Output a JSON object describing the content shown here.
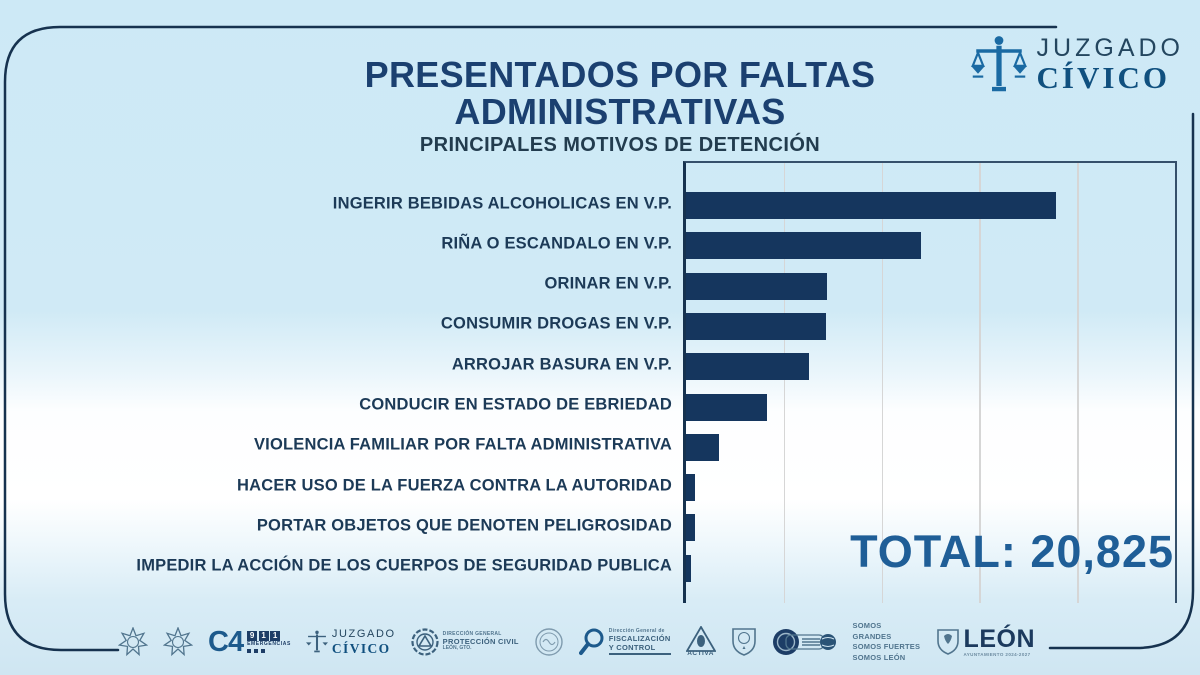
{
  "colors": {
    "background": "#cfe9f6",
    "bar": "#15365e",
    "title": "#1b4070",
    "subtitle": "#223c4e",
    "total_text": "#1f5e97",
    "frame": "#16324f",
    "footer_steel": "#51758e"
  },
  "brand": {
    "line1": "JUZGADO",
    "line2": "CÍVICO"
  },
  "header": {
    "title_line1": "PRESENTADOS POR FALTAS",
    "title_line2": "ADMINISTRATIVAS",
    "subtitle": "PRINCIPALES MOTIVOS DE DETENCIÓN"
  },
  "chart_data": {
    "type": "bar",
    "orientation": "horizontal",
    "title": "PRESENTADOS POR FALTAS ADMINISTRATIVAS",
    "subtitle": "PRINCIPALES MOTIVOS DE DETENCIÓN",
    "categories": [
      "INGERIR BEBIDAS ALCOHOLICAS EN V.P.",
      "RIÑA O ESCANDALO EN V.P.",
      "ORINAR EN V.P.",
      "CONSUMIR DROGAS EN V.P.",
      "ARROJAR BASURA EN V.P.",
      "CONDUCIR EN ESTADO DE EBRIEDAD",
      "VIOLENCIA FAMILIAR POR FALTA ADMINISTRATIVA",
      "HACER USO DE LA FUERZA CONTRA LA AUTORIDAD",
      "PORTAR OBJETOS QUE DENOTEN PELIGROSIDAD",
      "IMPEDIR LA ACCIÓN DE LOS CUERPOS DE SEGURIDAD PUBLICA"
    ],
    "values": [
      6723,
      4270,
      2562,
      2544,
      2235,
      1472,
      600,
      164,
      164,
      91
    ],
    "values_are_estimates": true,
    "value_labels_shown": false,
    "total": 20825,
    "length_frac": [
      0.757,
      0.481,
      0.288,
      0.286,
      0.252,
      0.166,
      0.067,
      0.018,
      0.018,
      0.01
    ],
    "bar_color": "#15365e",
    "gridlines": {
      "count": 4,
      "color": "#d6d6d6",
      "spacing_frac": 0.2
    },
    "legend": "none",
    "xlabel": "",
    "ylabel": ""
  },
  "total_label": {
    "text": "TOTAL: 20,825"
  },
  "footer": {
    "c4": {
      "main": "C4",
      "digits": [
        "9",
        "1",
        "1"
      ],
      "sub": "EMERGENCIAS"
    },
    "juzgado_small": {
      "line1": "JUZGADO",
      "line2": "CÍVICO"
    },
    "proteccion_civil": {
      "line1": "DIRECCIÓN GENERAL",
      "line2": "PROTECCIÓN CIVIL",
      "line3": "LEÓN, GTO."
    },
    "fiscalizacion": {
      "top": "Dirección General de",
      "line1": "FISCALIZACIÓN",
      "line2": "Y CONTROL"
    },
    "activa": {
      "label": "ACTIVA"
    },
    "somos": {
      "line1": "SOMOS GRANDES",
      "line2": "SOMOS FUERTES",
      "line3": "SOMOS LEÓN"
    },
    "leon": {
      "label": "LEÓN",
      "sub": "AYUNTAMIENTO 2024-2027"
    }
  }
}
